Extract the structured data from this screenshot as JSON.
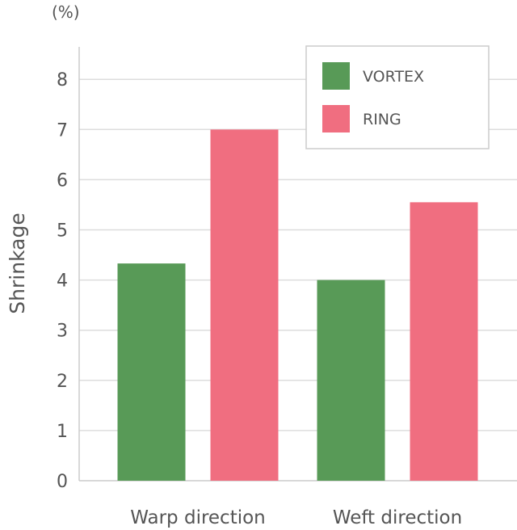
{
  "chart_data": {
    "type": "bar",
    "unit_label": "(%)",
    "ylabel": "Shrinkage",
    "xlabel": "",
    "categories": [
      "Warp direction",
      "Weft direction"
    ],
    "series": [
      {
        "name": "VORTEX",
        "color": "#589a57",
        "values": [
          4.33,
          4.0
        ]
      },
      {
        "name": "RING",
        "color": "#f06e80",
        "values": [
          7.0,
          5.55
        ]
      }
    ],
    "ylim": [
      0,
      8.6
    ],
    "yticks": [
      0,
      1,
      2,
      3,
      4,
      5,
      6,
      7,
      8
    ],
    "grid": true,
    "legend_position": "top-right"
  }
}
